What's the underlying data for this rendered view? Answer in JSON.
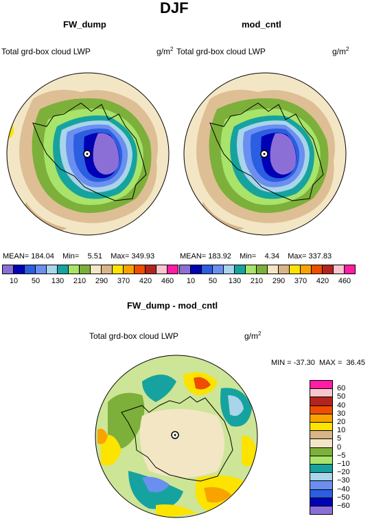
{
  "main_title": "DJF",
  "panels": [
    {
      "title": "FW_dump",
      "field_label": "Total grd-box cloud LWP",
      "units_base": "g/m",
      "units_exp": "2",
      "stats": {
        "mean_label": "MEAN=",
        "mean": "184.04",
        "min_label": "Min=",
        "min": "5.51",
        "max_label": "Max=",
        "max": "349.93"
      }
    },
    {
      "title": "mod_cntl",
      "field_label": "Total grd-box cloud LWP",
      "units_base": "g/m",
      "units_exp": "2",
      "stats": {
        "mean_label": "MEAN=",
        "mean": "183.92",
        "min_label": "Min=",
        "min": "4.34",
        "max_label": "Max=",
        "max": "337.83"
      }
    }
  ],
  "diff_panel": {
    "title": "FW_dump - mod_cntl",
    "field_label": "Total grd-box cloud LWP",
    "units_base": "g/m",
    "units_exp": "2",
    "stats": {
      "min_label": "MIN =",
      "min": "-37.30",
      "max_label": "MAX =",
      "max": "36.45"
    }
  },
  "top_colorbar": {
    "colors": [
      "#8c6fd6",
      "#0000b4",
      "#2b5ee0",
      "#6a8ff0",
      "#a9d4ea",
      "#16a3a0",
      "#a8e36a",
      "#7cb03a",
      "#f3e6c5",
      "#d8b487",
      "#fde300",
      "#f9a300",
      "#ef4d00",
      "#b3251c",
      "#f8c6cd",
      "#ff1da4"
    ],
    "labels": [
      "10",
      "50",
      "130",
      "210",
      "290",
      "370",
      "420",
      "460"
    ]
  },
  "diff_colorbar": {
    "colors": [
      "#ff1da4",
      "#f8c6cd",
      "#b3251c",
      "#ef4d00",
      "#f9a300",
      "#fde300",
      "#d8b487",
      "#f3e6c5",
      "#7cb03a",
      "#a8e36a",
      "#16a3a0",
      "#a9d4ea",
      "#6a8ff0",
      "#2b5ee0",
      "#0000b4",
      "#8c6fd6"
    ],
    "labels": [
      "60",
      "50",
      "40",
      "30",
      "20",
      "10",
      "5",
      "0",
      "-5",
      "-10",
      "-20",
      "-30",
      "-40",
      "-50",
      "-60"
    ]
  }
}
